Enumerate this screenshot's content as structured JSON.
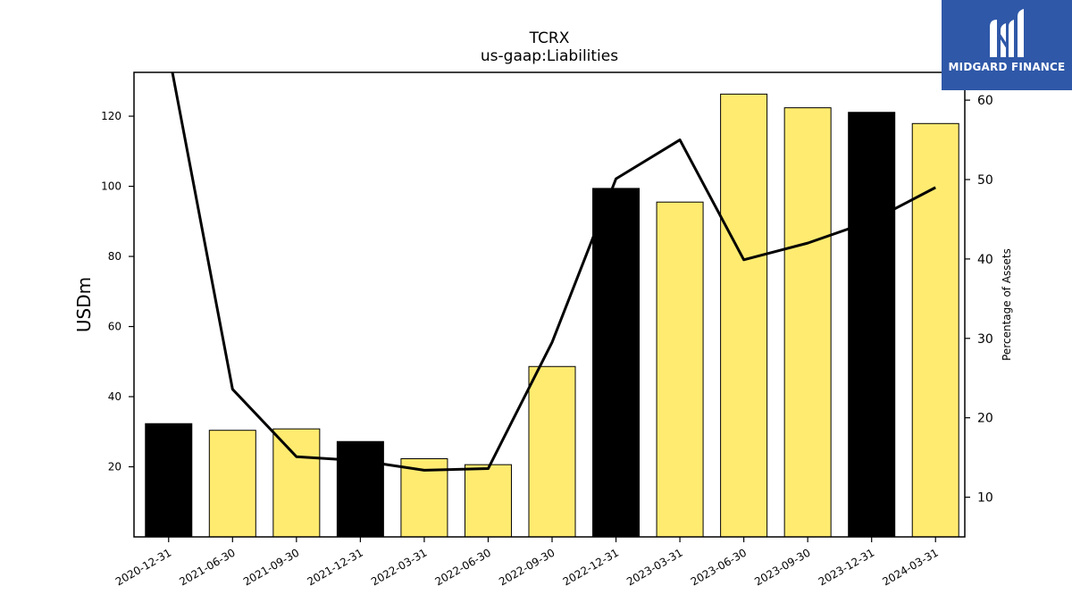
{
  "brand": {
    "name": "MIDGARD FINANCE",
    "logo_icon": "mf-monogram-icon",
    "background": "#2f58a8"
  },
  "chart_data": {
    "type": "bar",
    "title": "TCRX",
    "subtitle": "us-gaap:Liabilities",
    "ylabel": "USDm",
    "ylabel_right": "Percentage of Assets",
    "categories": [
      "2020-12-31",
      "2021-06-30",
      "2021-09-30",
      "2021-12-31",
      "2022-03-31",
      "2022-06-30",
      "2022-09-30",
      "2022-12-31",
      "2023-03-31",
      "2023-06-30",
      "2023-09-30",
      "2023-12-31",
      "2024-03-31"
    ],
    "series": [
      {
        "values": [
          32.3,
          30.4,
          30.8,
          27.2,
          22.3,
          20.6,
          48.6,
          99.4,
          95.5,
          126.3,
          122.4,
          121.1,
          117.9
        ],
        "colors": [
          "#000000",
          "#ffeb70",
          "#ffeb70",
          "#000000",
          "#ffeb70",
          "#ffeb70",
          "#ffeb70",
          "#000000",
          "#ffeb70",
          "#ffeb70",
          "#ffeb70",
          "#000000",
          "#ffeb70"
        ],
        "axis": "left"
      },
      {
        "type": "line",
        "axis": "right",
        "color": "#000000",
        "values": [
          66,
          23.6,
          15.1,
          14.6,
          13.4,
          13.6,
          29.5,
          50.1,
          55.0,
          39.9,
          42.0,
          44.8,
          49.0
        ]
      }
    ],
    "yticks_left": [
      20,
      40,
      60,
      80,
      100,
      120
    ],
    "yticks_right": [
      10,
      20,
      30,
      40,
      50,
      60
    ],
    "ylim": [
      0,
      132.5
    ],
    "ylim_right": [
      5,
      63.5
    ],
    "grid": false,
    "legend": "none"
  }
}
